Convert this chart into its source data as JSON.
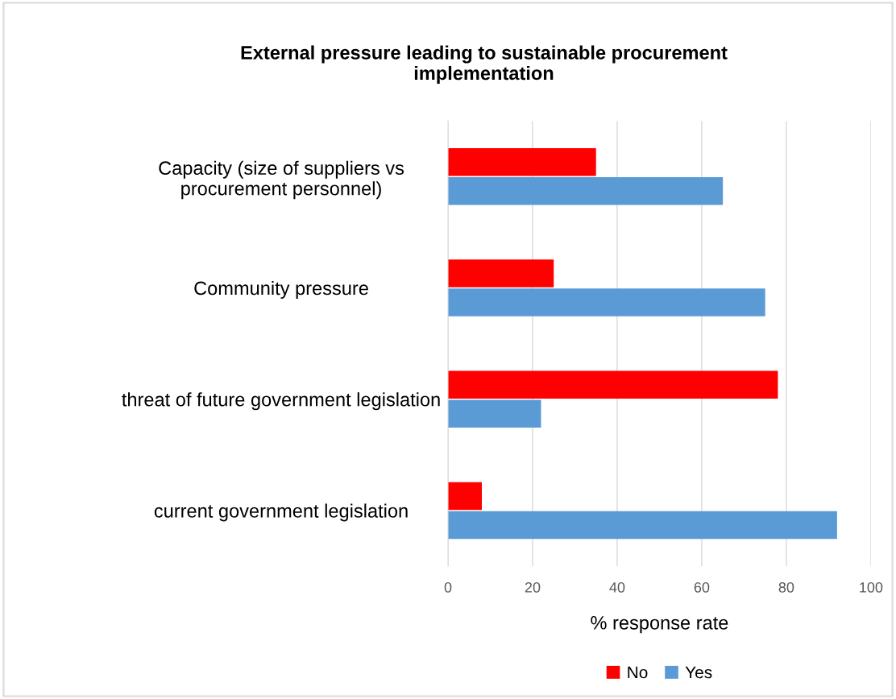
{
  "chart_data": {
    "type": "bar",
    "orientation": "horizontal",
    "title": "External pressure leading to sustainable procurement\nimplementation",
    "xlabel": "% response rate",
    "categories": [
      "Capacity (size of suppliers vs\nprocurement personnel)",
      "Community pressure",
      "threat of future government legislation",
      "current government legislation"
    ],
    "series": [
      {
        "name": "No",
        "color": "#ff0000",
        "values": [
          35,
          25,
          78,
          8
        ]
      },
      {
        "name": "Yes",
        "color": "#5b9bd5",
        "values": [
          65,
          75,
          22,
          92
        ]
      }
    ],
    "xlim": [
      0,
      100
    ],
    "xticks": [
      0,
      20,
      40,
      60,
      80,
      100
    ],
    "grid": "x",
    "legend": "bottom"
  }
}
